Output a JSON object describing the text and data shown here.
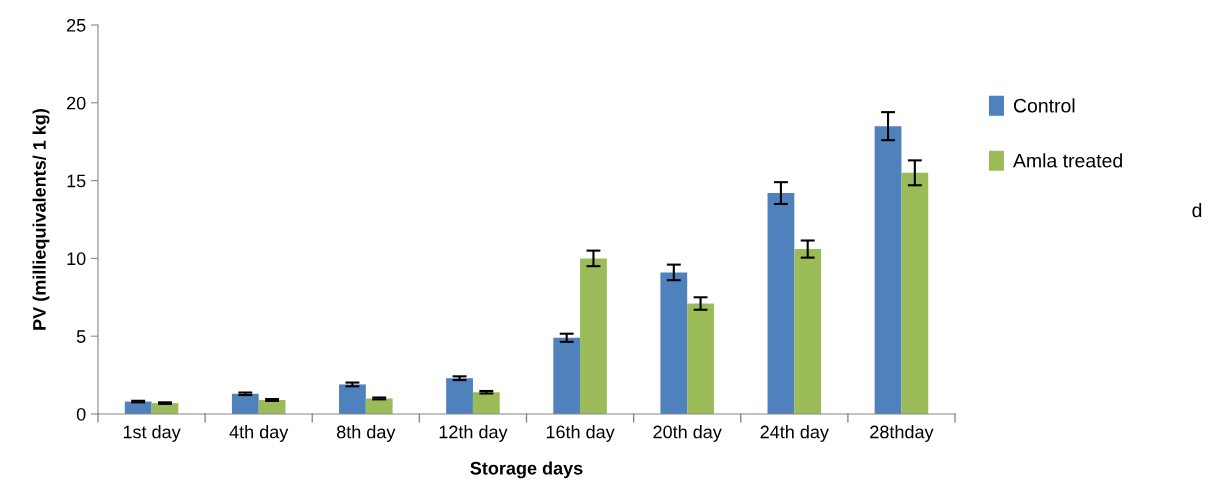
{
  "chart_data": {
    "type": "bar",
    "xlabel": "Storage days",
    "ylabel": "PV (milliequivalents/ 1 kg)",
    "categories": [
      "1st day",
      "4th day",
      "8th day",
      "12th day",
      "16th day",
      "20th day",
      "24th day",
      "28thday"
    ],
    "series": [
      {
        "name": "Control",
        "color": "#4f81bd",
        "values": [
          0.8,
          1.3,
          1.9,
          2.3,
          4.9,
          9.1,
          14.2,
          18.5
        ],
        "errors": [
          0.05,
          0.08,
          0.12,
          0.12,
          0.26,
          0.5,
          0.7,
          0.9
        ]
      },
      {
        "name": "Amla treated",
        "color": "#9bbb59",
        "values": [
          0.7,
          0.9,
          1.0,
          1.4,
          10,
          7.1,
          10.6,
          15.5
        ],
        "errors": [
          0.05,
          0.06,
          0.06,
          0.08,
          0.5,
          0.4,
          0.55,
          0.8
        ]
      }
    ],
    "ylim": [
      0,
      25
    ],
    "yticks": [
      0,
      5,
      10,
      15,
      20,
      25
    ],
    "grid": false,
    "legend": "right",
    "annotations": [
      "d"
    ]
  }
}
